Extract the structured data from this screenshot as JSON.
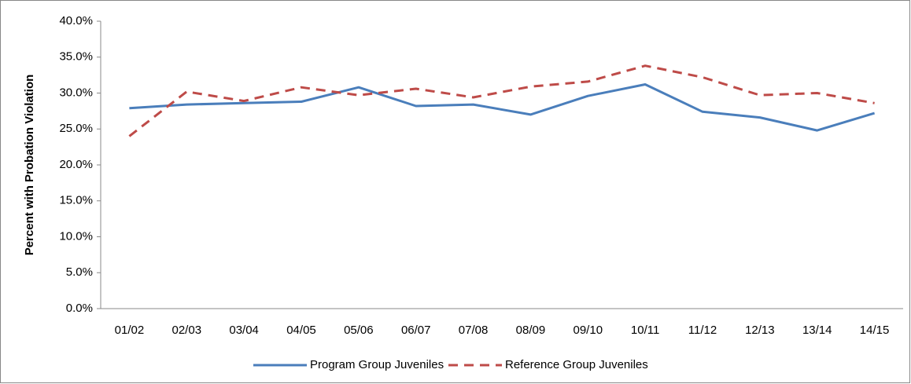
{
  "chart_data": {
    "type": "line",
    "y_label": "Percent with Probation Violation",
    "categories": [
      "01/02",
      "02/03",
      "03/04",
      "04/05",
      "05/06",
      "06/07",
      "07/08",
      "08/09",
      "09/10",
      "10/11",
      "11/12",
      "12/13",
      "13/14",
      "14/15"
    ],
    "series": [
      {
        "name": "Program Group Juveniles",
        "color": "#4a7ebb",
        "dash": "solid",
        "values": [
          27.9,
          28.4,
          28.6,
          28.8,
          30.8,
          28.2,
          28.4,
          27.0,
          29.6,
          31.2,
          27.4,
          26.6,
          24.8,
          27.2
        ]
      },
      {
        "name": "Reference Group Juveniles",
        "color": "#be4b48",
        "dash": "dashed",
        "values": [
          24.0,
          30.2,
          28.9,
          30.8,
          29.7,
          30.6,
          29.4,
          30.9,
          31.6,
          33.8,
          32.2,
          29.7,
          30.0,
          28.6
        ]
      }
    ],
    "ylim": [
      0,
      40
    ],
    "yticks": [
      {
        "value": 0,
        "label": "0.0%"
      },
      {
        "value": 5,
        "label": "5.0%"
      },
      {
        "value": 10,
        "label": "10.0%"
      },
      {
        "value": 15,
        "label": "15.0%"
      },
      {
        "value": 20,
        "label": "20.0%"
      },
      {
        "value": 25,
        "label": "25.0%"
      },
      {
        "value": 30,
        "label": "30.0%"
      },
      {
        "value": 35,
        "label": "35.0%"
      },
      {
        "value": 40,
        "label": "40.0%"
      }
    ],
    "grid": false,
    "legend": "bottom"
  }
}
